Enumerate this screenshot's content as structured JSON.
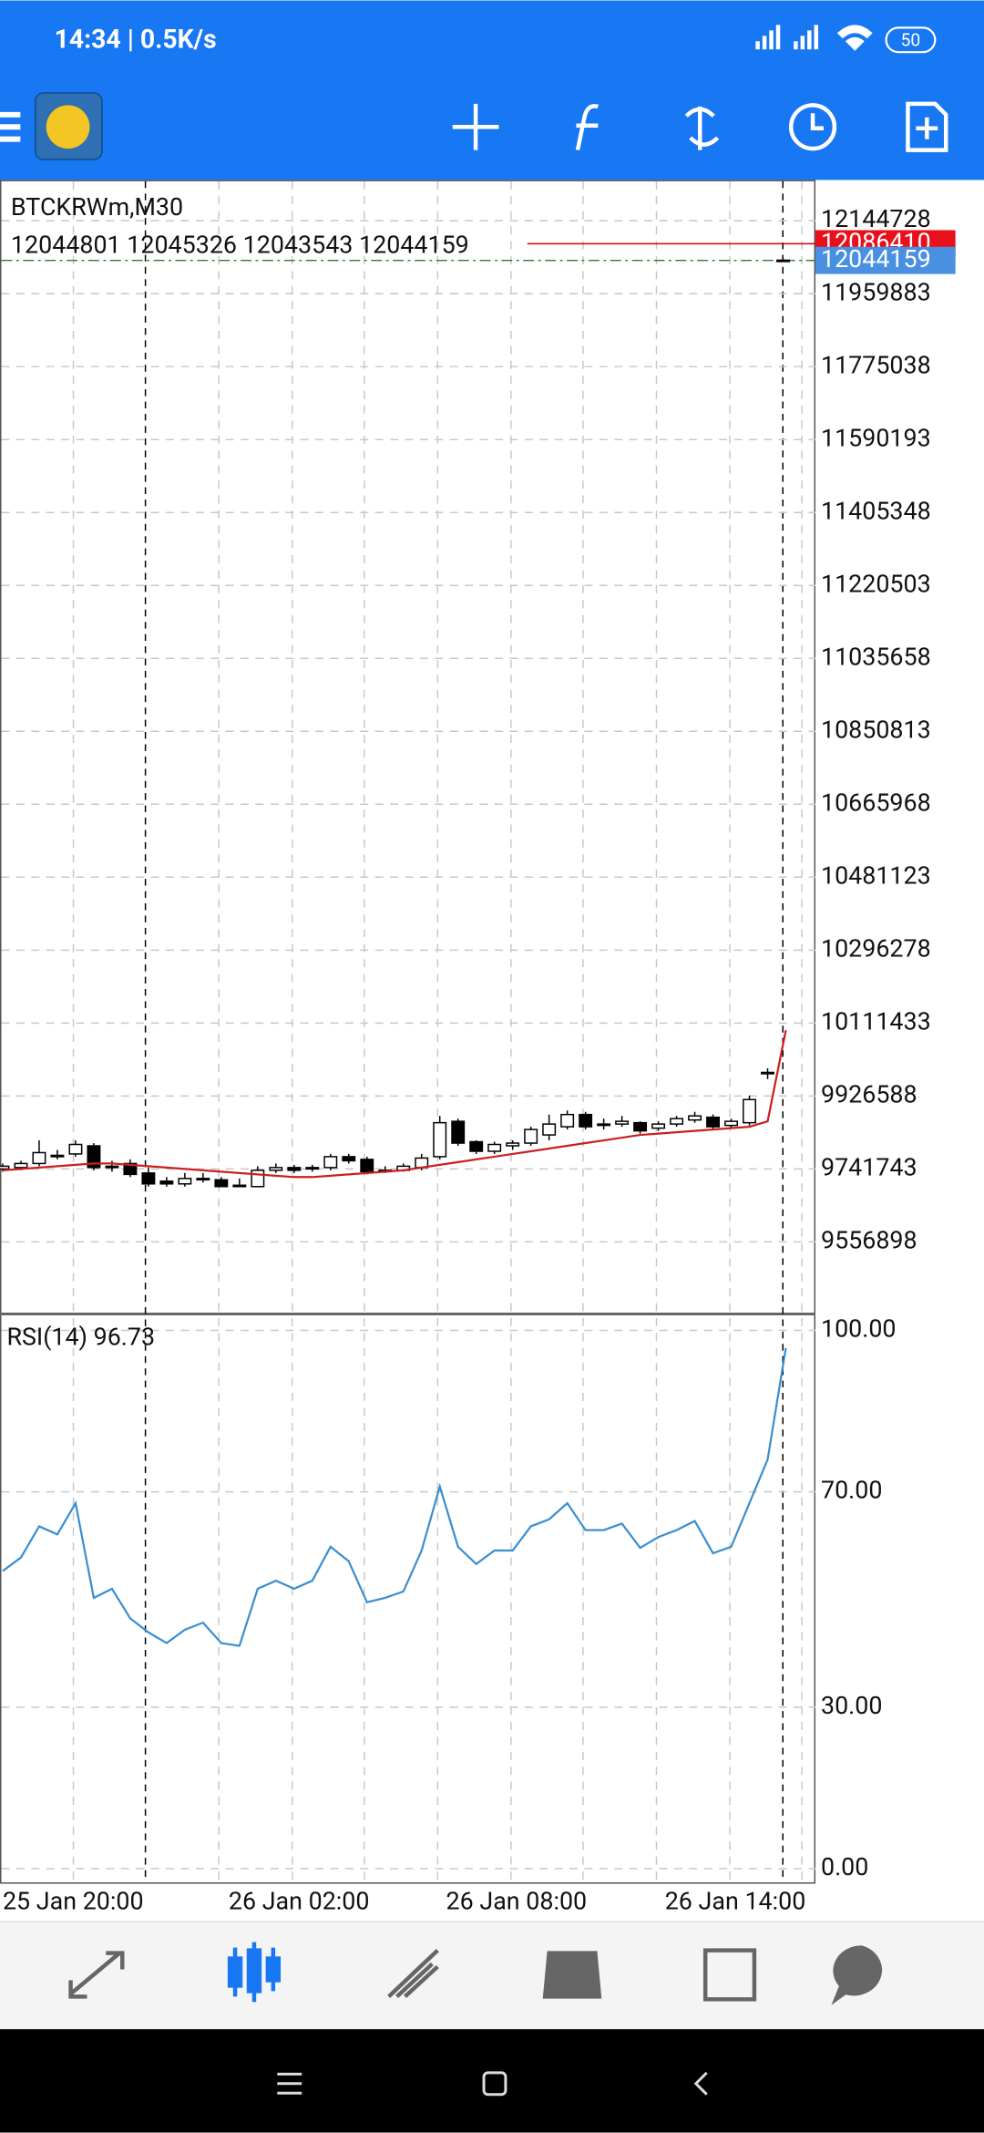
{
  "status_bar": {
    "time": "14:34 | 0.5K/s",
    "battery": "50"
  },
  "chart_data": {
    "type": "candlestick",
    "symbol": "BTCKRWm,M30",
    "ohlc": [
      12044801,
      12045326,
      12043543,
      12044159
    ],
    "candles": [
      [
        9741700,
        9755500,
        9734800,
        9748600
      ],
      [
        9745200,
        9762400,
        9738300,
        9755500
      ],
      [
        9755500,
        9814100,
        9748600,
        9783100
      ],
      [
        9776200,
        9790000,
        9765900,
        9776200
      ],
      [
        9779700,
        9814100,
        9772800,
        9803800
      ],
      [
        9800300,
        9807200,
        9738300,
        9745200
      ],
      [
        9748600,
        9762400,
        9734800,
        9745200
      ],
      [
        9755500,
        9765900,
        9721100,
        9727900
      ],
      [
        9731400,
        9745200,
        9696900,
        9703800
      ],
      [
        9710700,
        9721100,
        9697000,
        9703800
      ],
      [
        9703800,
        9731400,
        9697000,
        9717600
      ],
      [
        9717600,
        9731400,
        9707300,
        9717600
      ],
      [
        9714200,
        9721100,
        9697000,
        9697000
      ],
      [
        9700400,
        9717600,
        9697000,
        9700400
      ],
      [
        9697000,
        9748600,
        9697000,
        9738300
      ],
      [
        9738300,
        9755500,
        9731400,
        9745200
      ],
      [
        9745200,
        9752100,
        9731400,
        9738300
      ],
      [
        9741700,
        9752100,
        9734800,
        9745200
      ],
      [
        9745200,
        9779700,
        9738300,
        9772800
      ],
      [
        9772800,
        9779700,
        9755500,
        9762400
      ],
      [
        9765900,
        9772800,
        9727900,
        9734800
      ],
      [
        9738300,
        9748600,
        9731400,
        9738300
      ],
      [
        9738300,
        9755500,
        9734800,
        9748600
      ],
      [
        9745200,
        9779700,
        9738300,
        9769300
      ],
      [
        9772800,
        9876100,
        9765900,
        9858900
      ],
      [
        9862400,
        9869200,
        9800300,
        9807200
      ],
      [
        9810700,
        9814100,
        9779700,
        9786500
      ],
      [
        9786500,
        9810700,
        9779700,
        9803800
      ],
      [
        9800300,
        9814100,
        9790000,
        9807200
      ],
      [
        9807200,
        9848600,
        9800300,
        9841700
      ],
      [
        9827900,
        9879600,
        9814100,
        9855500
      ],
      [
        9848600,
        9889900,
        9841700,
        9879600
      ],
      [
        9879600,
        9886500,
        9841700,
        9848600
      ],
      [
        9855500,
        9869200,
        9841700,
        9855500
      ],
      [
        9855500,
        9876100,
        9848600,
        9862400
      ],
      [
        9858900,
        9862400,
        9831300,
        9838200
      ],
      [
        9845100,
        9862400,
        9838200,
        9855500
      ],
      [
        9855500,
        9876100,
        9848600,
        9869200
      ],
      [
        9865800,
        9886500,
        9858900,
        9876100
      ],
      [
        9872700,
        9879600,
        9841700,
        9848600
      ],
      [
        9852000,
        9869200,
        9845100,
        9862400
      ],
      [
        9858900,
        9927800,
        9852000,
        9917500
      ],
      [
        9982900,
        9996700,
        9969200,
        9986400
      ]
    ],
    "ma": [
      9738300,
      9741700,
      9745200,
      9748600,
      9752100,
      9755500,
      9755500,
      9752100,
      9748600,
      9745200,
      9741700,
      9738300,
      9734800,
      9731400,
      9727900,
      9724500,
      9721100,
      9721100,
      9724500,
      9727900,
      9731400,
      9734800,
      9738300,
      9745200,
      9752100,
      9759000,
      9765900,
      9772800,
      9779700,
      9786500,
      9793400,
      9800300,
      9807200,
      9814100,
      9821000,
      9827900,
      9831300,
      9834800,
      9838200,
      9841700,
      9845100,
      9848600,
      9862400,
      10093200
    ],
    "ma_color": "#cc1f1f",
    "ylim": [
      9377598,
      12248108
    ],
    "yticks": [
      12144728,
      11959883,
      11775038,
      11590193,
      11405348,
      11220503,
      11035658,
      10850813,
      10665968,
      10481123,
      10296278,
      10111433,
      9926588,
      9741743,
      9556898
    ],
    "ask": 12086410,
    "bid": 12044159,
    "xticks": [
      "25 Jan 20:00",
      "26 Jan 02:00",
      "26 Jan 08:00",
      "26 Jan 14:00"
    ],
    "indicator": {
      "type": "line",
      "name": "RSI(14)",
      "color": "#3b8fd0",
      "values": [
        55.3,
        57.8,
        63.6,
        62.1,
        67.9,
        50.3,
        52.0,
        46.5,
        43.9,
        41.9,
        44.4,
        45.7,
        41.9,
        41.4,
        52.0,
        53.5,
        52.0,
        53.5,
        59.8,
        57.1,
        49.5,
        50.3,
        51.5,
        59.1,
        71.0,
        59.8,
        56.6,
        59.1,
        59.1,
        63.6,
        64.9,
        67.9,
        62.9,
        62.9,
        64.1,
        59.6,
        61.6,
        62.9,
        64.6,
        58.6,
        59.8,
        67.9,
        76.0,
        96.73
      ],
      "ylim": [
        -2.8,
        102.8
      ],
      "yticks": [
        {
          "value": 100,
          "label": "100.00"
        },
        {
          "value": 70,
          "label": "70.00"
        },
        {
          "value": 30,
          "label": "30.00"
        },
        {
          "value": 0,
          "label": "0.00"
        }
      ]
    }
  }
}
